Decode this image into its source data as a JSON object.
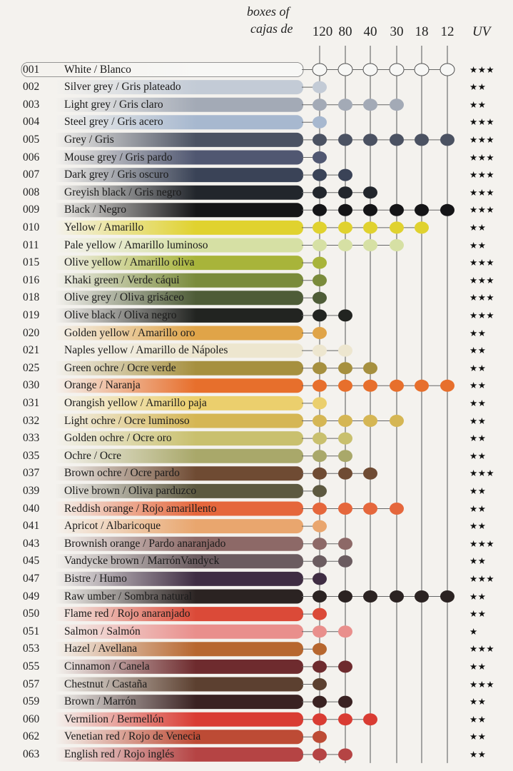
{
  "header": {
    "boxes_of": "boxes of",
    "cajas_de": "cajas de",
    "uv": "UV",
    "box_sizes": [
      "120",
      "80",
      "40",
      "30",
      "18",
      "12"
    ]
  },
  "rows": [
    {
      "code": "001",
      "name": "White / Blanco",
      "color": "#f7f7f5",
      "boxes": [
        1,
        1,
        1,
        1,
        1,
        1
      ],
      "uv": "★★★"
    },
    {
      "code": "002",
      "name": "Silver grey / Gris plateado",
      "color": "#c3cbd6",
      "boxes": [
        1,
        0,
        0,
        0,
        0,
        0
      ],
      "uv": "★★"
    },
    {
      "code": "003",
      "name": "Light grey / Gris claro",
      "color": "#a3aab6",
      "boxes": [
        1,
        1,
        1,
        1,
        0,
        0
      ],
      "uv": "★★"
    },
    {
      "code": "004",
      "name": "Steel grey / Gris acero",
      "color": "#a7b8cf",
      "boxes": [
        1,
        0,
        0,
        0,
        0,
        0
      ],
      "uv": "★★★"
    },
    {
      "code": "005",
      "name": "Grey / Gris",
      "color": "#4b5262",
      "boxes": [
        1,
        1,
        1,
        1,
        1,
        1
      ],
      "uv": "★★★"
    },
    {
      "code": "006",
      "name": "Mouse grey / Gris pardo",
      "color": "#505771",
      "boxes": [
        1,
        0,
        0,
        0,
        0,
        0
      ],
      "uv": "★★★"
    },
    {
      "code": "007",
      "name": "Dark grey / Gris oscuro",
      "color": "#3a4357",
      "boxes": [
        1,
        1,
        0,
        0,
        0,
        0
      ],
      "uv": "★★★"
    },
    {
      "code": "008",
      "name": "Greyish black / Gris negro",
      "color": "#22262c",
      "boxes": [
        1,
        1,
        1,
        0,
        0,
        0
      ],
      "uv": "★★★"
    },
    {
      "code": "009",
      "name": "Black / Negro",
      "color": "#151517",
      "boxes": [
        1,
        1,
        1,
        1,
        1,
        1
      ],
      "uv": "★★★"
    },
    {
      "code": "010",
      "name": "Yellow / Amarillo",
      "color": "#e0d22f",
      "boxes": [
        1,
        1,
        1,
        1,
        1,
        0
      ],
      "uv": "★★"
    },
    {
      "code": "011",
      "name": "Pale yellow / Amarillo luminoso",
      "color": "#d6e0a4",
      "boxes": [
        1,
        1,
        1,
        1,
        0,
        0
      ],
      "uv": "★★"
    },
    {
      "code": "015",
      "name": "Olive yellow / Amarillo oliva",
      "color": "#a8b43a",
      "boxes": [
        1,
        0,
        0,
        0,
        0,
        0
      ],
      "uv": "★★★"
    },
    {
      "code": "016",
      "name": "Khaki green / Verde cáqui",
      "color": "#7a8b3b",
      "boxes": [
        1,
        0,
        0,
        0,
        0,
        0
      ],
      "uv": "★★★"
    },
    {
      "code": "018",
      "name": "Olive grey / Oliva grisáceo",
      "color": "#4e5c37",
      "boxes": [
        1,
        0,
        0,
        0,
        0,
        0
      ],
      "uv": "★★★"
    },
    {
      "code": "019",
      "name": "Olive black / Oliva negro",
      "color": "#222421",
      "boxes": [
        1,
        1,
        0,
        0,
        0,
        0
      ],
      "uv": "★★★"
    },
    {
      "code": "020",
      "name": "Golden yellow / Amarillo oro",
      "color": "#e0a448",
      "boxes": [
        1,
        0,
        0,
        0,
        0,
        0
      ],
      "uv": "★★"
    },
    {
      "code": "021",
      "name": "Naples yellow / Amarillo de Nápoles",
      "color": "#ede6cf",
      "boxes": [
        1,
        1,
        0,
        0,
        0,
        0
      ],
      "uv": "★★"
    },
    {
      "code": "025",
      "name": "Green ochre / Ocre verde",
      "color": "#a6903f",
      "boxes": [
        1,
        1,
        1,
        0,
        0,
        0
      ],
      "uv": "★★"
    },
    {
      "code": "030",
      "name": "Orange / Naranja",
      "color": "#e76f2c",
      "boxes": [
        1,
        1,
        1,
        1,
        1,
        1
      ],
      "uv": "★★"
    },
    {
      "code": "031",
      "name": "Orangish yellow / Amarillo paja",
      "color": "#ebcf6d",
      "boxes": [
        1,
        0,
        0,
        0,
        0,
        0
      ],
      "uv": "★★"
    },
    {
      "code": "032",
      "name": "Light ochre / Ocre luminoso",
      "color": "#d5b654",
      "boxes": [
        1,
        1,
        1,
        1,
        0,
        0
      ],
      "uv": "★★"
    },
    {
      "code": "033",
      "name": "Golden ochre / Ocre oro",
      "color": "#c9c06e",
      "boxes": [
        1,
        1,
        0,
        0,
        0,
        0
      ],
      "uv": "★★"
    },
    {
      "code": "035",
      "name": "Ochre / Ocre",
      "color": "#a9a86a",
      "boxes": [
        1,
        1,
        0,
        0,
        0,
        0
      ],
      "uv": "★★"
    },
    {
      "code": "037",
      "name": "Brown ochre / Ocre pardo",
      "color": "#6f4b33",
      "boxes": [
        1,
        1,
        1,
        0,
        0,
        0
      ],
      "uv": "★★★"
    },
    {
      "code": "039",
      "name": "Olive brown / Oliva parduzco",
      "color": "#5d5940",
      "boxes": [
        1,
        0,
        0,
        0,
        0,
        0
      ],
      "uv": "★★"
    },
    {
      "code": "040",
      "name": "Reddish orange / Rojo amarillento",
      "color": "#e5673c",
      "boxes": [
        1,
        1,
        1,
        1,
        0,
        0
      ],
      "uv": "★★"
    },
    {
      "code": "041",
      "name": "Apricot / Albaricoque",
      "color": "#e9a66e",
      "boxes": [
        1,
        0,
        0,
        0,
        0,
        0
      ],
      "uv": "★★"
    },
    {
      "code": "043",
      "name": "Brownish orange / Pardo anaranjado",
      "color": "#8d6967",
      "boxes": [
        1,
        1,
        0,
        0,
        0,
        0
      ],
      "uv": "★★★"
    },
    {
      "code": "045",
      "name": "Vandycke brown / MarrónVandyck",
      "color": "#6b5c60",
      "boxes": [
        1,
        1,
        0,
        0,
        0,
        0
      ],
      "uv": "★★"
    },
    {
      "code": "047",
      "name": "Bistre / Humo",
      "color": "#3f2d43",
      "boxes": [
        1,
        0,
        0,
        0,
        0,
        0
      ],
      "uv": "★★★"
    },
    {
      "code": "049",
      "name": "Raw umber / Sombra natural",
      "color": "#2b2322",
      "boxes": [
        1,
        1,
        1,
        1,
        1,
        1
      ],
      "uv": "★★"
    },
    {
      "code": "050",
      "name": "Flame red / Rojo anaranjado",
      "color": "#db4a38",
      "boxes": [
        1,
        0,
        0,
        0,
        0,
        0
      ],
      "uv": "★★"
    },
    {
      "code": "051",
      "name": "Salmon / Salmón",
      "color": "#e98f8c",
      "boxes": [
        1,
        1,
        0,
        0,
        0,
        0
      ],
      "uv": "★"
    },
    {
      "code": "053",
      "name": "Hazel / Avellana",
      "color": "#b7672f",
      "boxes": [
        1,
        0,
        0,
        0,
        0,
        0
      ],
      "uv": "★★★"
    },
    {
      "code": "055",
      "name": "Cinnamon / Canela",
      "color": "#6e2b2e",
      "boxes": [
        1,
        1,
        0,
        0,
        0,
        0
      ],
      "uv": "★★"
    },
    {
      "code": "057",
      "name": "Chestnut / Castaña",
      "color": "#5c4030",
      "boxes": [
        1,
        0,
        0,
        0,
        0,
        0
      ],
      "uv": "★★★"
    },
    {
      "code": "059",
      "name": "Brown / Marrón",
      "color": "#3a2222",
      "boxes": [
        1,
        1,
        0,
        0,
        0,
        0
      ],
      "uv": "★★"
    },
    {
      "code": "060",
      "name": "Vermilion / Bermellón",
      "color": "#d93c33",
      "boxes": [
        1,
        1,
        1,
        0,
        0,
        0
      ],
      "uv": "★★"
    },
    {
      "code": "062",
      "name": "Venetian red / Rojo de Venecia",
      "color": "#bd4b35",
      "boxes": [
        1,
        0,
        0,
        0,
        0,
        0
      ],
      "uv": "★★"
    },
    {
      "code": "063",
      "name": "English red / Rojo inglés",
      "color": "#b54444",
      "boxes": [
        1,
        1,
        0,
        0,
        0,
        0
      ],
      "uv": "★★"
    }
  ]
}
